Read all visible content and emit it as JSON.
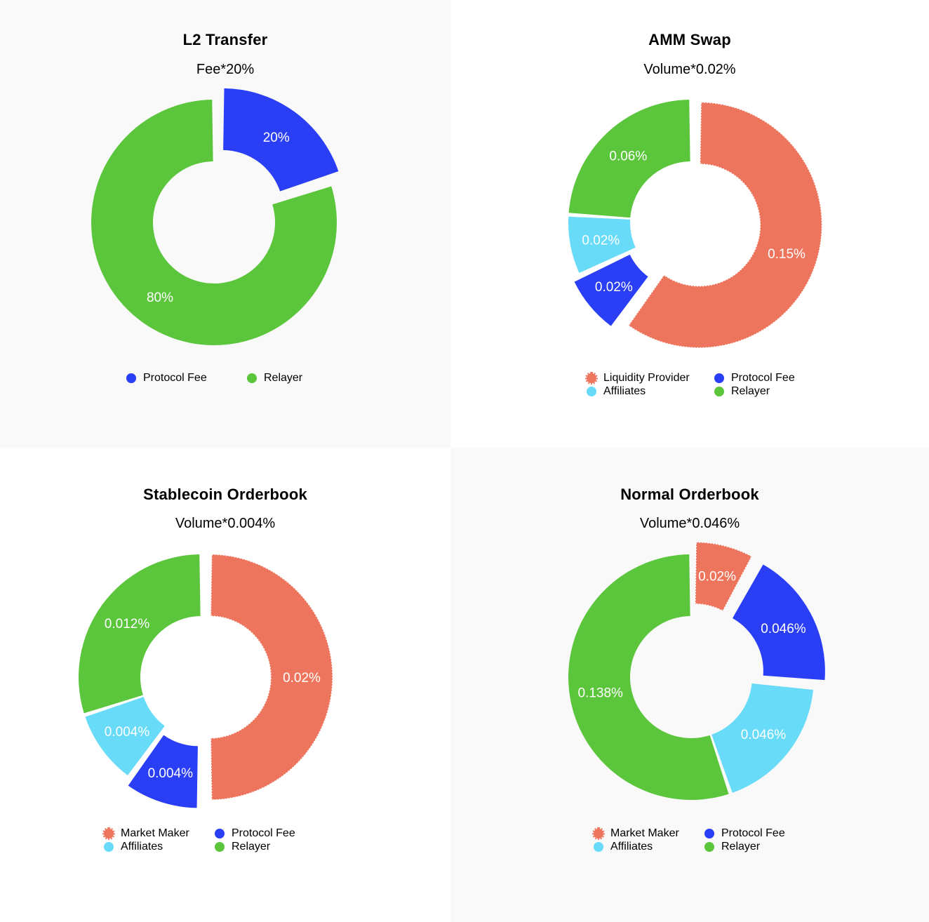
{
  "chart_data": [
    {
      "type": "pie",
      "title": "L2 Transfer",
      "subtitle": "Fee*20%",
      "donut": true,
      "slices": [
        {
          "name": "Protocol Fee",
          "value": 20,
          "label": "20%",
          "color": "#2a3ff5",
          "exploded": true
        },
        {
          "name": "Relayer",
          "value": 80,
          "label": "80%",
          "color": "#5bc53c",
          "exploded": false
        }
      ],
      "legend": [
        "Protocol Fee",
        "Relayer"
      ]
    },
    {
      "type": "pie",
      "title": "AMM Swap",
      "subtitle": "Volume*0.02%",
      "donut": true,
      "slices": [
        {
          "name": "Liquidity Provider",
          "value": 0.15,
          "label": "0.15%",
          "color": "#ee755d",
          "exploded": true,
          "dashed": true
        },
        {
          "name": "Protocol Fee",
          "value": 0.02,
          "label": "0.02%",
          "color": "#2a3ff5",
          "exploded": true
        },
        {
          "name": "Affiliates",
          "value": 0.02,
          "label": "0.02%",
          "color": "#67dbf8",
          "exploded": false
        },
        {
          "name": "Relayer",
          "value": 0.06,
          "label": "0.06%",
          "color": "#5bc53c",
          "exploded": false
        }
      ],
      "legend": [
        "Liquidity Provider",
        "Protocol Fee",
        "Affiliates",
        "Relayer"
      ]
    },
    {
      "type": "pie",
      "title": "Stablecoin Orderbook",
      "subtitle": "Volume*0.004%",
      "donut": true,
      "slices": [
        {
          "name": "Market Maker",
          "value": 0.02,
          "label": "0.02%",
          "color": "#ee755d",
          "exploded": true,
          "dashed": true
        },
        {
          "name": "Protocol Fee",
          "value": 0.004,
          "label": "0.004%",
          "color": "#2a3ff5",
          "exploded": true
        },
        {
          "name": "Affiliates",
          "value": 0.004,
          "label": "0.004%",
          "color": "#67dbf8",
          "exploded": false
        },
        {
          "name": "Relayer",
          "value": 0.012,
          "label": "0.012%",
          "color": "#5bc53c",
          "exploded": false
        }
      ],
      "legend": [
        "Market Maker",
        "Protocol Fee",
        "Affiliates",
        "Relayer"
      ]
    },
    {
      "type": "pie",
      "title": "Normal Orderbook",
      "subtitle": "Volume*0.046%",
      "donut": true,
      "slices": [
        {
          "name": "Market Maker",
          "value": 0.02,
          "label": "0.02%",
          "color": "#ee755d",
          "exploded": true,
          "dashed": true
        },
        {
          "name": "Protocol Fee",
          "value": 0.046,
          "label": "0.046%",
          "color": "#2a3ff5",
          "exploded": true
        },
        {
          "name": "Affiliates",
          "value": 0.046,
          "label": "0.046%",
          "color": "#67dbf8",
          "exploded": false
        },
        {
          "name": "Relayer",
          "value": 0.138,
          "label": "0.138%",
          "color": "#5bc53c",
          "exploded": false
        }
      ],
      "legend": [
        "Market Maker",
        "Protocol Fee",
        "Affiliates",
        "Relayer"
      ]
    }
  ]
}
